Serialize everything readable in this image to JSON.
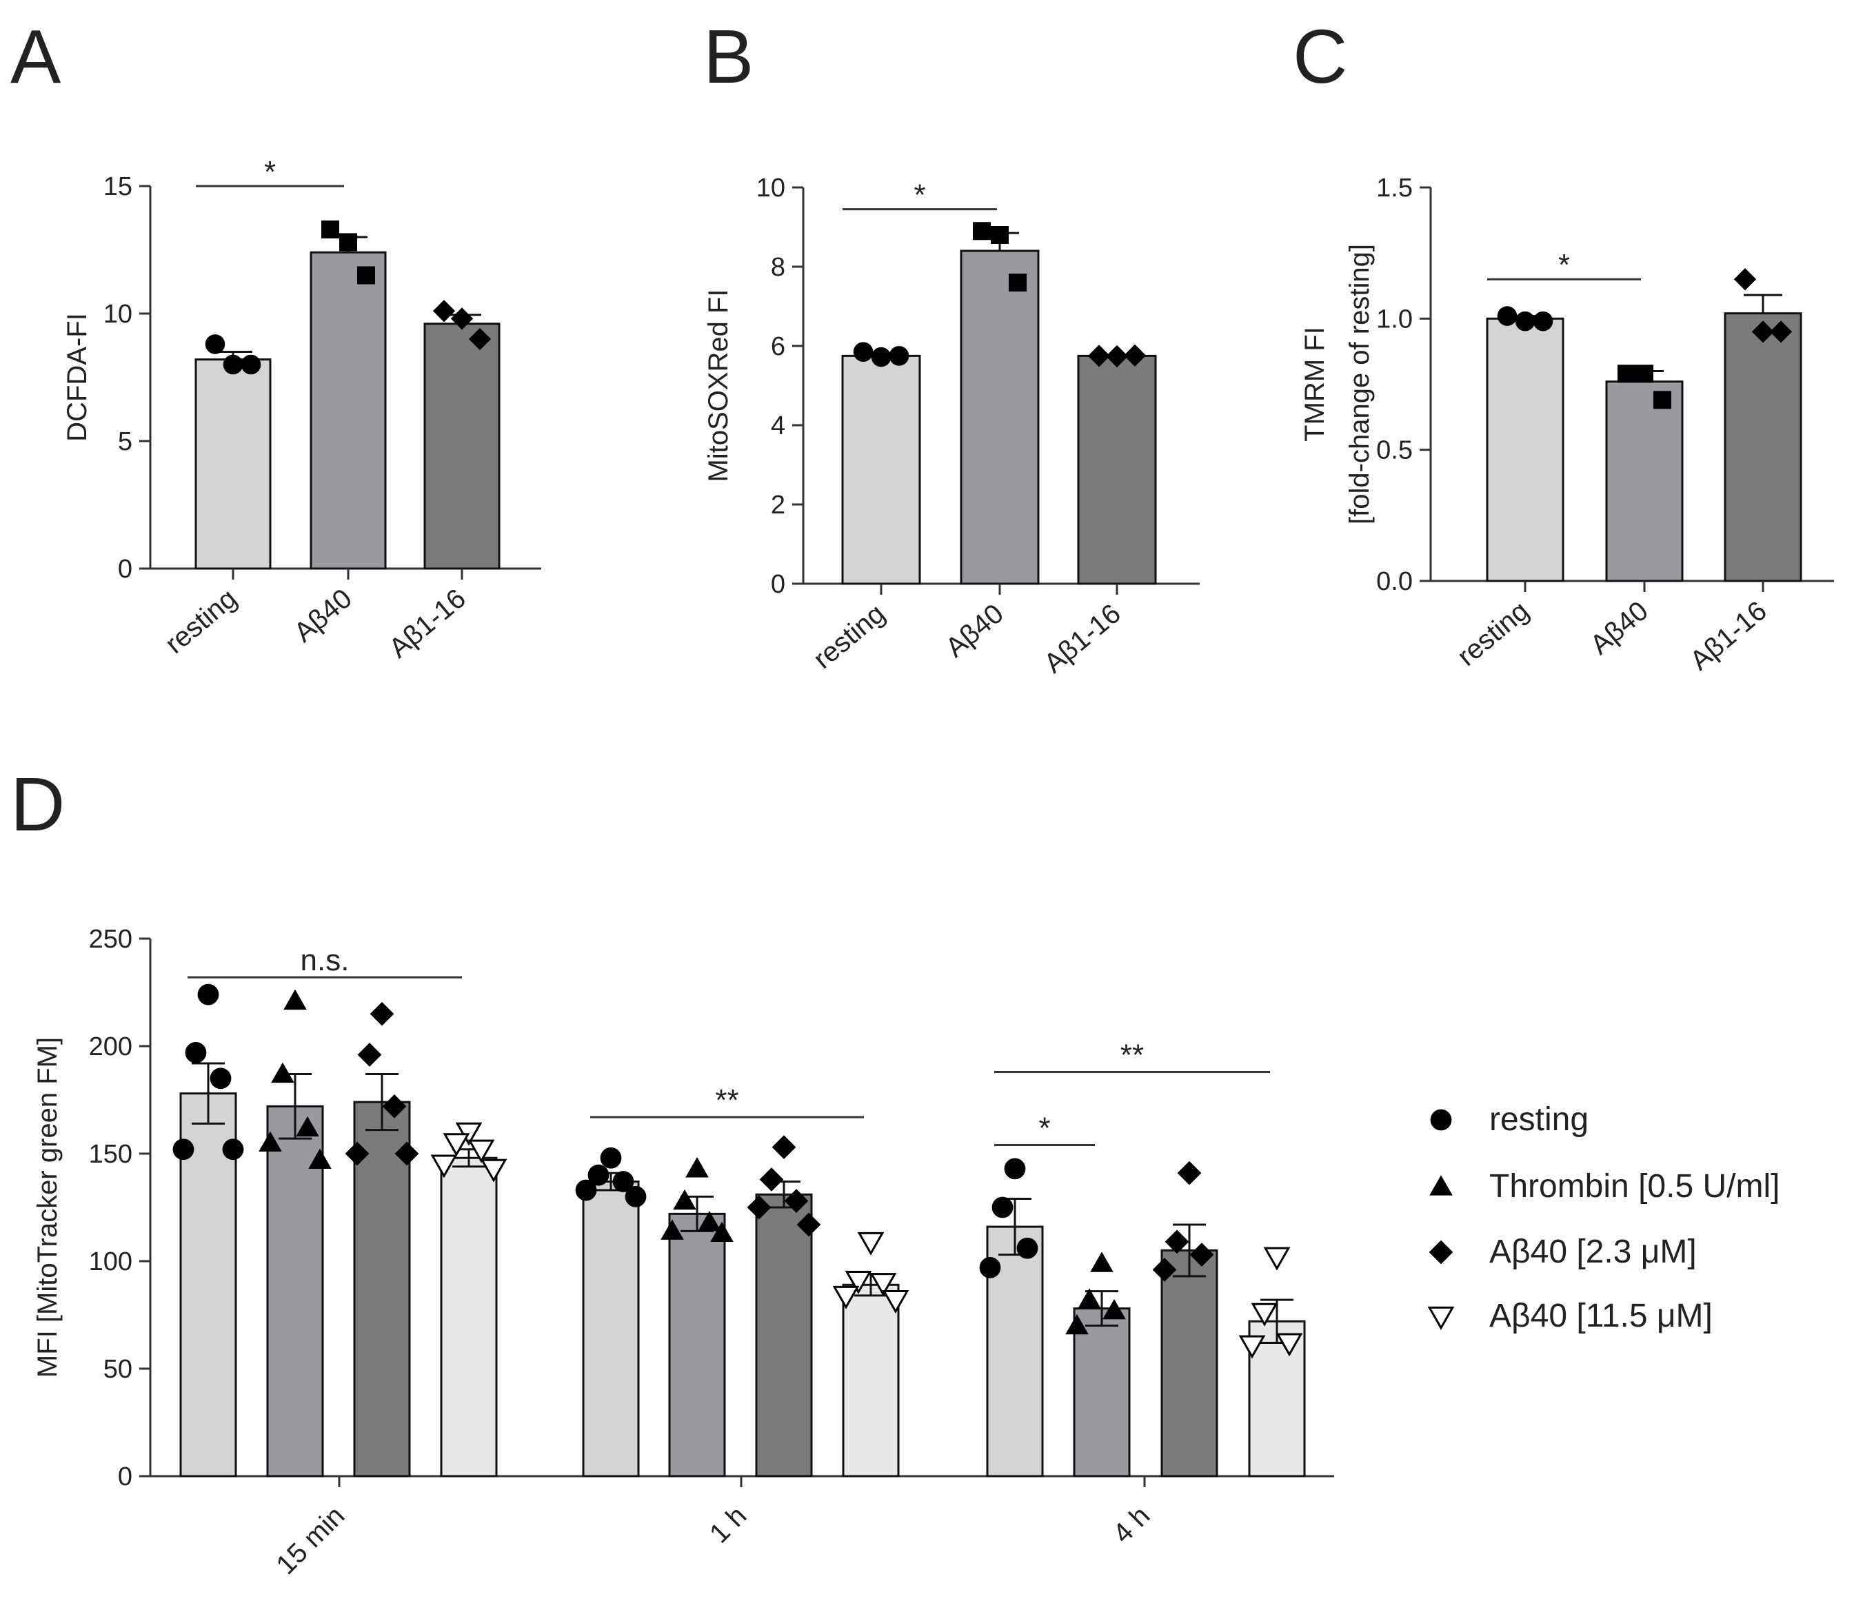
{
  "colors": {
    "light": "#d4d4d4",
    "mid": "#9a9a9e",
    "dark": "#7b7b7b",
    "vlight": "#e8e8e8",
    "ink": "#000000"
  },
  "chart_data": [
    {
      "id": "A",
      "panel": "A",
      "type": "bar",
      "ylabel": [
        "DCFDA-FI"
      ],
      "ylim": [
        0,
        15
      ],
      "yticks": [
        0,
        5,
        10,
        15
      ],
      "tick_decimals": 0,
      "categories": [
        "resting",
        "Aβ40",
        "Aβ1-16"
      ],
      "values": [
        8.2,
        12.4,
        9.6
      ],
      "sem": [
        0.3,
        0.6,
        0.35
      ],
      "fills": [
        "light",
        "mid",
        "dark"
      ],
      "markers": [
        "circle",
        "square",
        "diamond"
      ],
      "points": [
        [
          8.8,
          8.0,
          8.0
        ],
        [
          13.3,
          12.8,
          11.5
        ],
        [
          10.1,
          9.8,
          9.0
        ]
      ],
      "significance": [
        {
          "from": 0,
          "to": 1,
          "y": 15.0,
          "label": "*"
        }
      ]
    },
    {
      "id": "B",
      "panel": "B",
      "type": "bar",
      "ylabel": [
        "MitoSOXRed FI"
      ],
      "ylim": [
        0,
        10
      ],
      "yticks": [
        0,
        2,
        4,
        6,
        8,
        10
      ],
      "tick_decimals": 0,
      "categories": [
        "resting",
        "Aβ40",
        "Aβ1-16"
      ],
      "values": [
        5.75,
        8.4,
        5.75
      ],
      "sem": [
        0.05,
        0.45,
        0.02
      ],
      "fills": [
        "light",
        "mid",
        "dark"
      ],
      "markers": [
        "circle",
        "square",
        "diamond"
      ],
      "points": [
        [
          5.85,
          5.72,
          5.75
        ],
        [
          8.9,
          8.8,
          7.6
        ],
        [
          5.75,
          5.74,
          5.76
        ]
      ],
      "significance": [
        {
          "from": 0,
          "to": 1,
          "y": 9.45,
          "label": "*"
        }
      ]
    },
    {
      "id": "C",
      "panel": "C",
      "type": "bar",
      "ylabel": [
        "TMRM FI",
        "[fold-change of resting]"
      ],
      "ylim": [
        0,
        1.5
      ],
      "yticks": [
        0.0,
        0.5,
        1.0,
        1.5
      ],
      "tick_decimals": 1,
      "categories": [
        "resting",
        "Aβ40",
        "Aβ1-16"
      ],
      "values": [
        1.0,
        0.76,
        1.02
      ],
      "sem": [
        0.01,
        0.04,
        0.07
      ],
      "fills": [
        "light",
        "mid",
        "dark"
      ],
      "markers": [
        "circle",
        "square",
        "diamond"
      ],
      "points": [
        [
          1.01,
          0.99,
          0.99
        ],
        [
          0.79,
          0.79,
          0.69
        ],
        [
          1.15,
          0.95,
          0.95
        ]
      ],
      "significance": [
        {
          "from": 0,
          "to": 1,
          "y": 1.15,
          "label": "*"
        }
      ]
    },
    {
      "id": "D",
      "panel": "D",
      "type": "bar",
      "ylabel": [
        "MFI [MitoTracker green FM]"
      ],
      "ylim": [
        0,
        250
      ],
      "yticks": [
        0,
        50,
        100,
        150,
        200,
        250
      ],
      "tick_decimals": 0,
      "categories": [
        "15 min",
        "1 h",
        "4 h"
      ],
      "series": [
        {
          "name": "resting",
          "marker": "circle",
          "fill": "light",
          "values": [
            178,
            137,
            116
          ],
          "sem": [
            14,
            4,
            13
          ],
          "points": [
            [
              224,
              197,
              185,
              152,
              152
            ],
            [
              148,
              140,
              137,
              133,
              130
            ],
            [
              143,
              125,
              106,
              97
            ]
          ]
        },
        {
          "name": "Thrombin [0.5 U/ml]",
          "marker": "triangle",
          "fill": "mid",
          "values": [
            172,
            122,
            78
          ],
          "sem": [
            15,
            8,
            8
          ],
          "points": [
            [
              221,
              187,
              162,
              155,
              147
            ],
            [
              143,
              128,
              118,
              114,
              113
            ],
            [
              99,
              82,
              77,
              70
            ]
          ]
        },
        {
          "name": "Aβ40 [2.3 μM]",
          "marker": "diamond",
          "fill": "dark",
          "values": [
            174,
            131,
            105
          ],
          "sem": [
            13,
            6,
            12
          ],
          "points": [
            [
              215,
              196,
              172,
              150,
              150
            ],
            [
              153,
              138,
              128,
              125,
              117
            ],
            [
              141,
              109,
              103,
              96
            ]
          ]
        },
        {
          "name": "Aβ40 [11.5 μM]",
          "marker": "triangle-down-open",
          "fill": "vlight",
          "values": [
            148,
            89,
            72
          ],
          "sem": [
            4,
            5,
            10
          ],
          "points": [
            [
              160,
              155,
              152,
              145,
              143
            ],
            [
              109,
              91,
              90,
              84,
              82
            ],
            [
              102,
              76,
              62,
              61
            ]
          ]
        }
      ],
      "significance": [
        {
          "group": 0,
          "from": 0,
          "to": 3,
          "y": 232,
          "label": "n.s."
        },
        {
          "group": 1,
          "from": 0,
          "to": 3,
          "y": 167,
          "label": "**"
        },
        {
          "group": 2,
          "from": 0,
          "to": 1,
          "y": 154,
          "label": "*"
        },
        {
          "group": 2,
          "from": 0,
          "to": 3,
          "y": 188,
          "label": "**"
        }
      ],
      "legend_position": "right"
    }
  ]
}
